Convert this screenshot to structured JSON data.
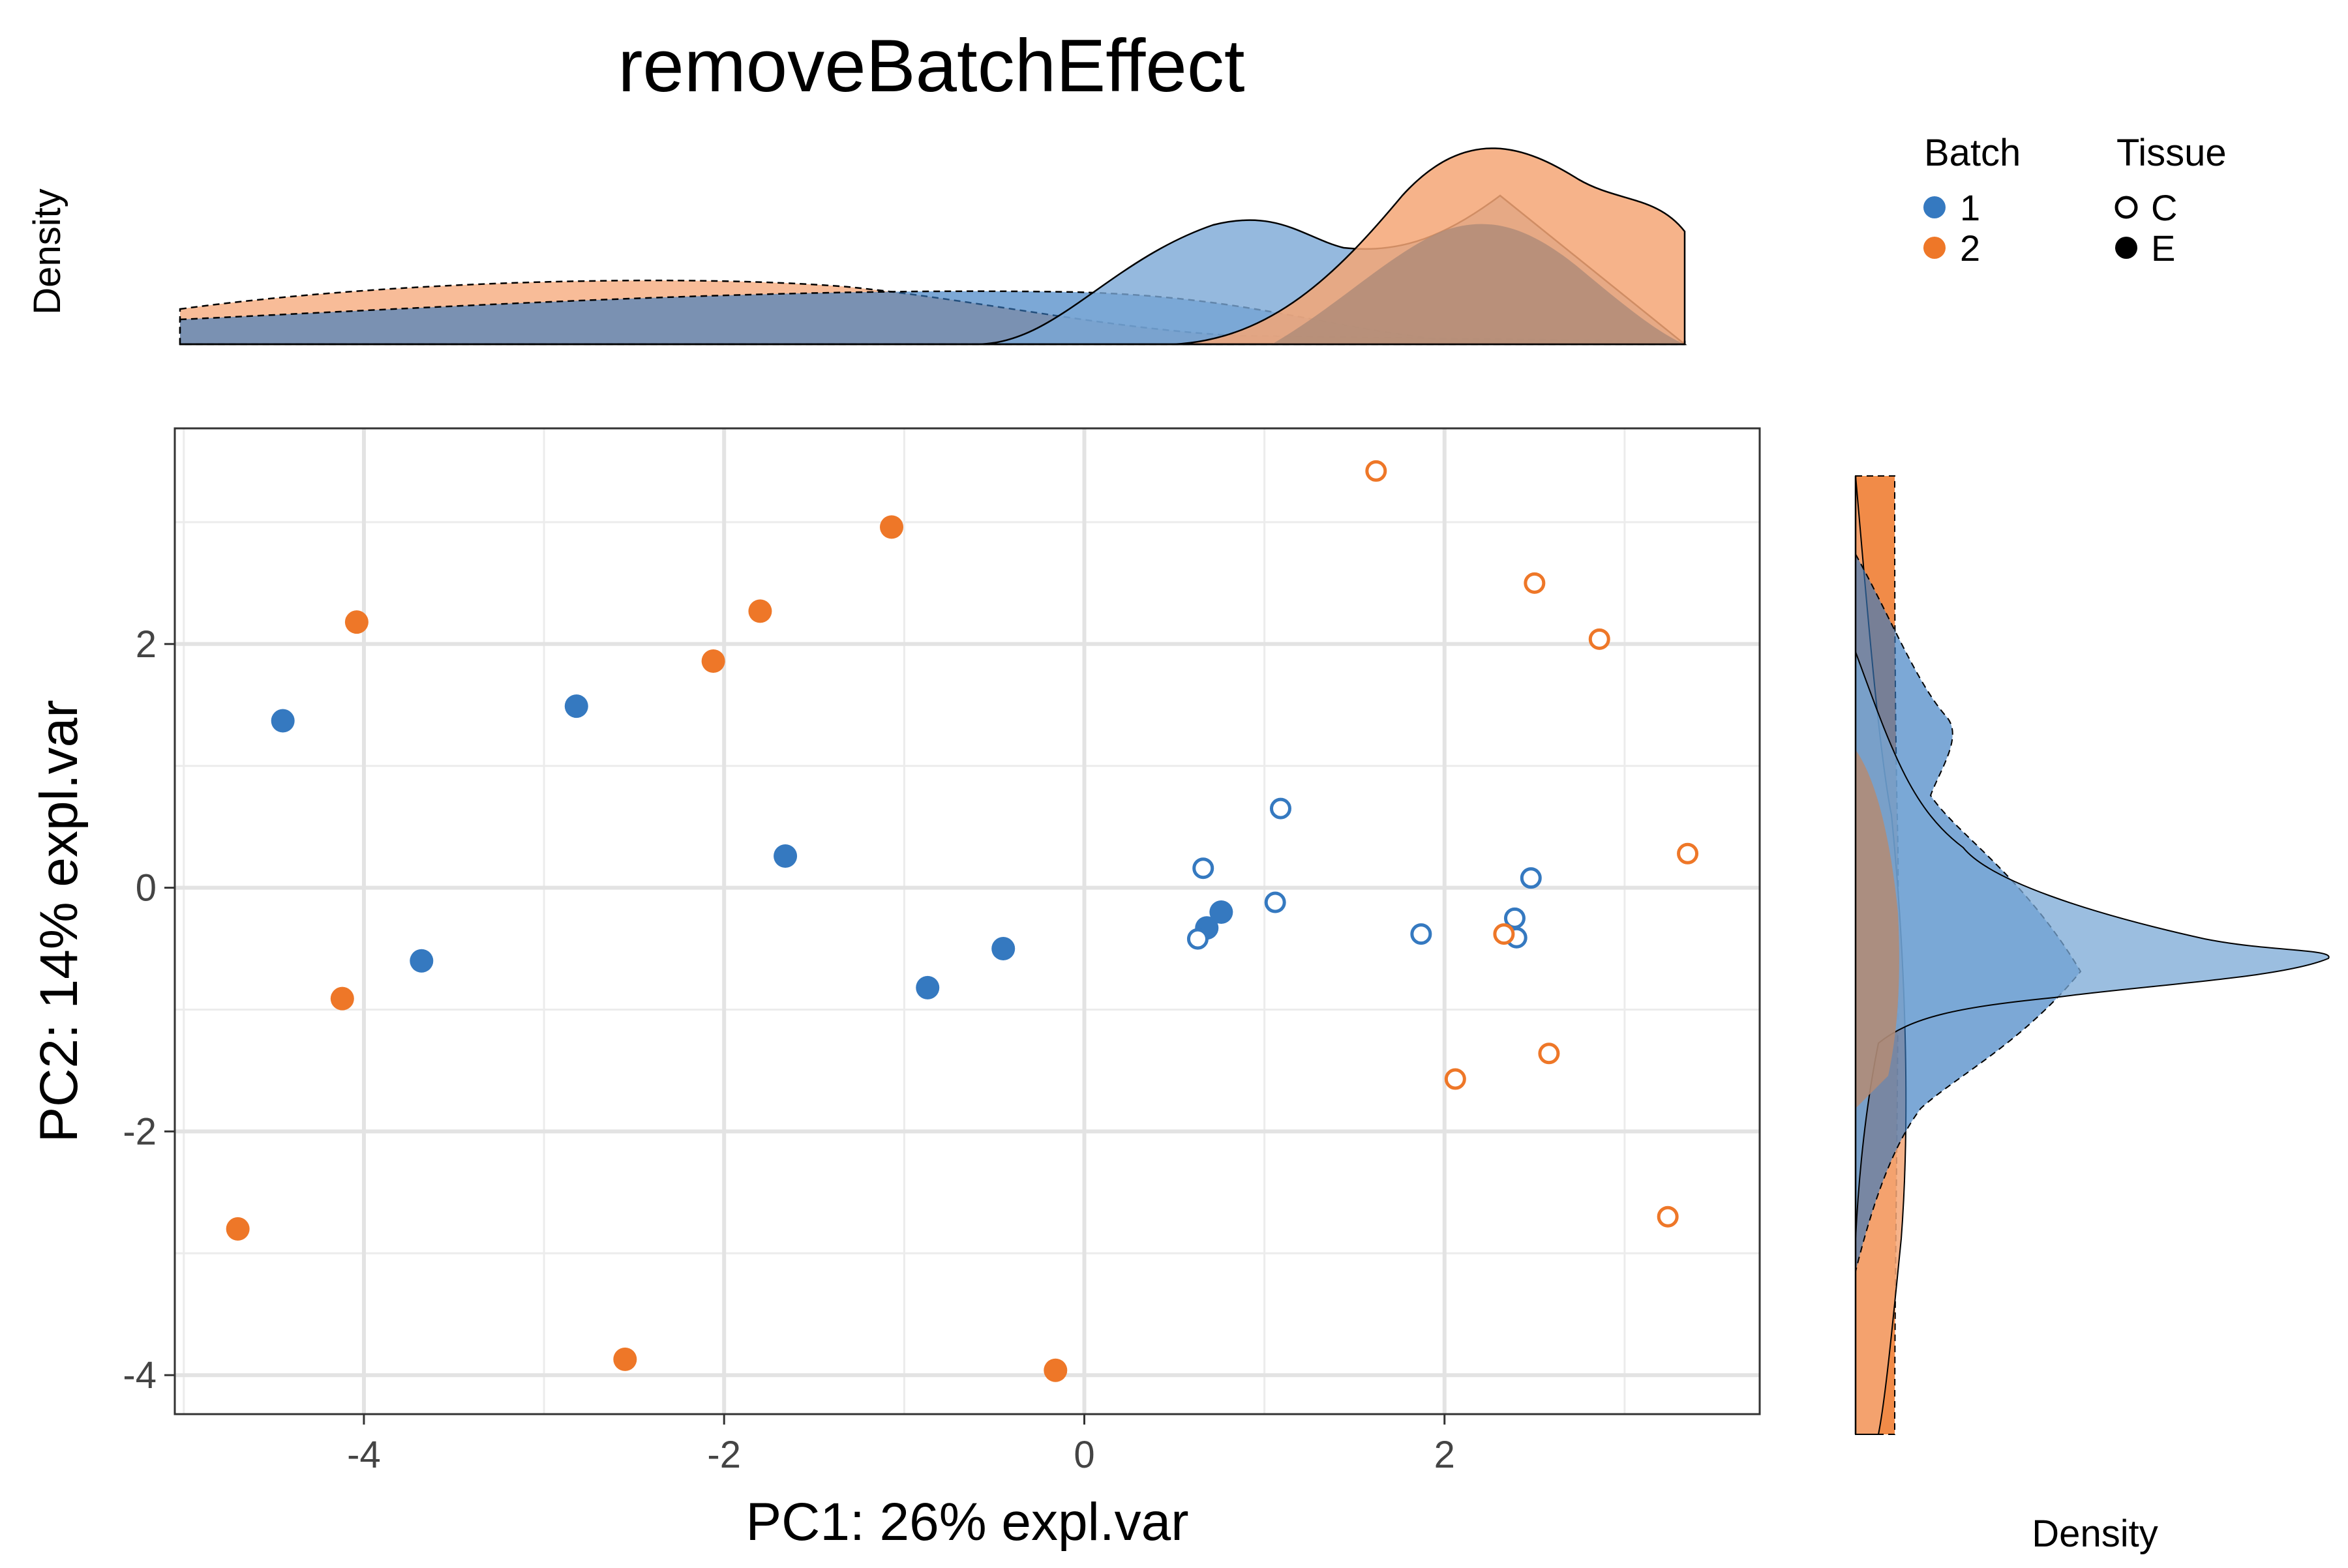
{
  "chart_data": {
    "type": "scatter",
    "title": "removeBatchEffect",
    "xlabel": "PC1: 26% expl.var",
    "ylabel": "PC2: 14% expl.var",
    "xlim": [
      -5.05,
      3.75
    ],
    "ylim": [
      -4.32,
      3.77
    ],
    "x_ticks": [
      -4,
      -2,
      0,
      2
    ],
    "y_ticks": [
      -4,
      -2,
      0,
      2
    ],
    "x_tick_labels": [
      "-4",
      "-2",
      "0",
      "2"
    ],
    "y_tick_labels": [
      "-4",
      "-2",
      "0",
      "2"
    ],
    "grid": true,
    "top_density_label": "Density",
    "right_density_label": "Density",
    "legend": {
      "placement": "top-right",
      "batch_title": "Batch",
      "tissue_title": "Tissue",
      "batch_items": [
        {
          "label": "1",
          "color": "#3579c0"
        },
        {
          "label": "2",
          "color": "#ee7728"
        }
      ],
      "tissue_items": [
        {
          "label": "C",
          "shape": "open-circle"
        },
        {
          "label": "E",
          "shape": "filled-circle"
        }
      ]
    },
    "colors": {
      "batch1": "#3579c0",
      "batch2": "#ee7728",
      "batch1_fill": "#7aa8d6",
      "batch2_fill": "#f5a675",
      "overlap_fill": "#b08c78"
    },
    "points": [
      {
        "x": -4.45,
        "y": 1.37,
        "batch": "1",
        "tissue": "E"
      },
      {
        "x": -2.82,
        "y": 1.49,
        "batch": "1",
        "tissue": "E"
      },
      {
        "x": -3.68,
        "y": -0.6,
        "batch": "1",
        "tissue": "E"
      },
      {
        "x": -1.66,
        "y": 0.26,
        "batch": "1",
        "tissue": "E"
      },
      {
        "x": -0.87,
        "y": -0.82,
        "batch": "1",
        "tissue": "E"
      },
      {
        "x": -0.45,
        "y": -0.5,
        "batch": "1",
        "tissue": "E"
      },
      {
        "x": 0.68,
        "y": -0.33,
        "batch": "1",
        "tissue": "E"
      },
      {
        "x": 0.76,
        "y": -0.2,
        "batch": "1",
        "tissue": "E"
      },
      {
        "x": 1.09,
        "y": 0.65,
        "batch": "1",
        "tissue": "C"
      },
      {
        "x": 0.66,
        "y": 0.16,
        "batch": "1",
        "tissue": "C"
      },
      {
        "x": 0.63,
        "y": -0.42,
        "batch": "1",
        "tissue": "C"
      },
      {
        "x": 1.06,
        "y": -0.12,
        "batch": "1",
        "tissue": "C"
      },
      {
        "x": 1.87,
        "y": -0.38,
        "batch": "1",
        "tissue": "C"
      },
      {
        "x": 2.39,
        "y": -0.25,
        "batch": "1",
        "tissue": "C"
      },
      {
        "x": 2.4,
        "y": -0.41,
        "batch": "1",
        "tissue": "C"
      },
      {
        "x": 2.48,
        "y": 0.08,
        "batch": "1",
        "tissue": "C"
      },
      {
        "x": -4.04,
        "y": 2.18,
        "batch": "2",
        "tissue": "E"
      },
      {
        "x": -1.8,
        "y": 2.27,
        "batch": "2",
        "tissue": "E"
      },
      {
        "x": -2.06,
        "y": 1.86,
        "batch": "2",
        "tissue": "E"
      },
      {
        "x": -1.07,
        "y": 2.96,
        "batch": "2",
        "tissue": "E"
      },
      {
        "x": -4.12,
        "y": -0.91,
        "batch": "2",
        "tissue": "E"
      },
      {
        "x": -4.7,
        "y": -2.8,
        "batch": "2",
        "tissue": "E"
      },
      {
        "x": -2.55,
        "y": -3.87,
        "batch": "2",
        "tissue": "E"
      },
      {
        "x": -0.16,
        "y": -3.96,
        "batch": "2",
        "tissue": "E"
      },
      {
        "x": 1.62,
        "y": 3.42,
        "batch": "2",
        "tissue": "C"
      },
      {
        "x": 2.5,
        "y": 2.5,
        "batch": "2",
        "tissue": "C"
      },
      {
        "x": 2.86,
        "y": 2.04,
        "batch": "2",
        "tissue": "C"
      },
      {
        "x": 3.35,
        "y": 0.28,
        "batch": "2",
        "tissue": "C"
      },
      {
        "x": 2.33,
        "y": -0.38,
        "batch": "2",
        "tissue": "C"
      },
      {
        "x": 2.58,
        "y": -1.36,
        "batch": "2",
        "tissue": "C"
      },
      {
        "x": 2.06,
        "y": -1.57,
        "batch": "2",
        "tissue": "C"
      },
      {
        "x": 3.24,
        "y": -2.7,
        "batch": "2",
        "tissue": "C"
      }
    ]
  }
}
